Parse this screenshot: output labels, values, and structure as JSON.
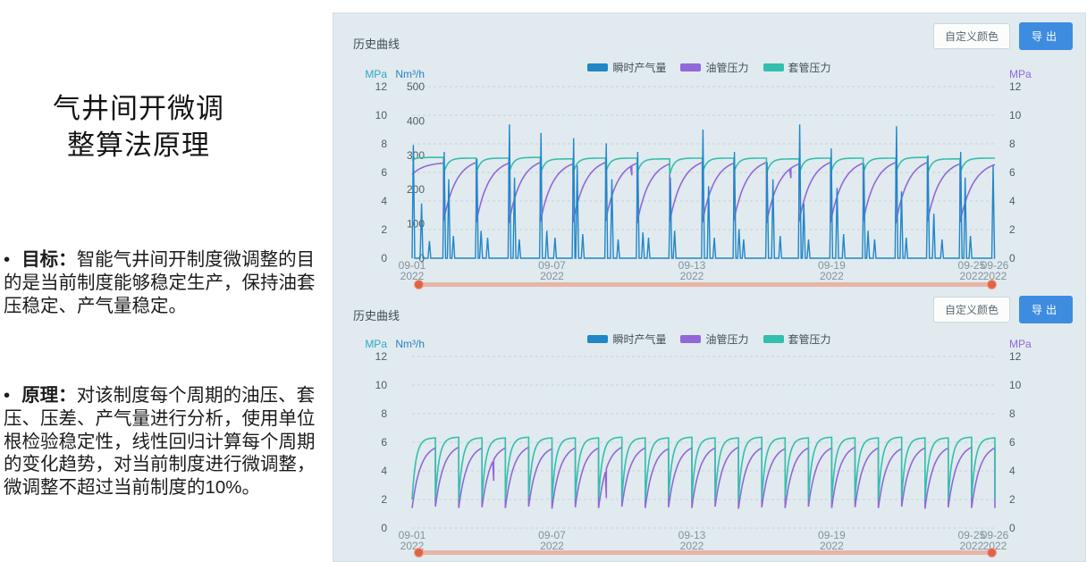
{
  "slide": {
    "bullet_glyph": "•",
    "title_line1": "气井间开微调",
    "title_line2": "整算法原理",
    "bullets": [
      {
        "label": "目标：",
        "text": "智能气井间开制度微调整的目的是当前制度能够稳定生产，保持油套压稳定、产气量稳定。"
      },
      {
        "label": "原理：",
        "text": "对该制度每个周期的油压、套压、压差、产气量进行分析，使用单位根检验稳定性，线性回归计算每个周期的变化趋势，对当前制度进行微调整，微调整不超过当前制度的10%。"
      }
    ]
  },
  "panel": {
    "charts": [
      {
        "header": "历史曲线",
        "custom_color_btn": "自定义颜色",
        "export_btn": "导出"
      },
      {
        "header": "历史曲线",
        "custom_color_btn": "自定义颜色",
        "export_btn": "导出"
      }
    ]
  },
  "chart_data": [
    {
      "type": "line",
      "title": "历史曲线",
      "has_flow": true,
      "final_drop": false,
      "casing_k": 8,
      "tubing_k": 2.6,
      "x_axis": {
        "max_day": 25,
        "ticks": [
          {
            "day": 0,
            "date": "09-01",
            "year": "2022"
          },
          {
            "day": 6,
            "date": "09-07",
            "year": "2022"
          },
          {
            "day": 12,
            "date": "09-13",
            "year": "2022"
          },
          {
            "day": 18,
            "date": "09-19",
            "year": "2022"
          },
          {
            "day": 24,
            "date": "09-25",
            "year": "2022"
          },
          {
            "day": 25,
            "date": "09-26",
            "year": "2022"
          }
        ]
      },
      "left_mpa": {
        "label": "MPa",
        "min": 0,
        "max": 12,
        "ticks": [
          0,
          2,
          4,
          6,
          8,
          10,
          12
        ],
        "color": "#2ea8c5"
      },
      "left_flow": {
        "label": "Nm³/h",
        "min": 0,
        "max": 500,
        "ticks": [
          0,
          100,
          200,
          300,
          400,
          500
        ],
        "color": "#2a7fc0"
      },
      "right_mpa": {
        "label": "MPa",
        "min": 0,
        "max": 12,
        "ticks": [
          0,
          2,
          4,
          6,
          8,
          10,
          12
        ],
        "color": "#9168d8"
      },
      "series": [
        {
          "name": "瞬时产气量",
          "color": "#2186c8",
          "axis": "flow"
        },
        {
          "name": "油管压力",
          "color": "#9168d8",
          "axis": "mpa"
        },
        {
          "name": "套管压力",
          "color": "#33bfad",
          "axis": "mpa"
        }
      ],
      "cycles": [
        {
          "s": 0,
          "d": 1.35,
          "casing": [
            6.85,
            7.05
          ],
          "tubing": [
            5.85,
            6.65
          ],
          "spikes": [
            [
              0.04,
              330
            ],
            [
              0.3,
              160
            ],
            [
              0.55,
              50
            ]
          ]
        },
        {
          "s": 1.35,
          "d": 1.4,
          "casing": [
            5.9,
            7.0
          ],
          "tubing": [
            2.6,
            6.7
          ],
          "spikes": [
            [
              0.02,
              310
            ],
            [
              0.16,
              230
            ],
            [
              0.3,
              65
            ]
          ]
        },
        {
          "s": 2.75,
          "d": 1.4,
          "casing": [
            5.95,
            7.0
          ],
          "tubing": [
            2.5,
            6.65
          ],
          "spikes": [
            [
              0.02,
              290
            ],
            [
              0.15,
              80
            ],
            [
              0.35,
              60
            ]
          ]
        },
        {
          "s": 4.15,
          "d": 1.35,
          "casing": [
            5.9,
            7.05
          ],
          "tubing": [
            2.45,
            6.7
          ],
          "spikes": [
            [
              0.02,
              390
            ],
            [
              0.18,
              235
            ],
            [
              0.33,
              55
            ]
          ]
        },
        {
          "s": 5.5,
          "d": 1.4,
          "casing": [
            5.85,
            6.95
          ],
          "tubing": [
            2.55,
            6.6
          ],
          "spikes": [
            [
              0.02,
              365
            ],
            [
              0.2,
              80
            ],
            [
              0.45,
              60
            ]
          ]
        },
        {
          "s": 6.9,
          "d": 1.4,
          "casing": [
            5.9,
            7.0
          ],
          "tubing": [
            2.5,
            6.7
          ],
          "spikes": [
            [
              0.02,
              350
            ],
            [
              0.13,
              270
            ],
            [
              0.3,
              70
            ]
          ]
        },
        {
          "s": 8.3,
          "d": 1.35,
          "casing": [
            5.95,
            7.0
          ],
          "tubing": [
            2.6,
            6.65
          ],
          "notch": [
            0.8,
            5.8
          ],
          "spikes": [
            [
              0.02,
              335
            ],
            [
              0.2,
              230
            ],
            [
              0.4,
              55
            ]
          ]
        },
        {
          "s": 9.65,
          "d": 1.4,
          "casing": [
            5.9,
            6.95
          ],
          "tubing": [
            2.45,
            6.6
          ],
          "spikes": [
            [
              0.02,
              310
            ],
            [
              0.18,
              75
            ],
            [
              0.35,
              60
            ]
          ]
        },
        {
          "s": 11.05,
          "d": 1.4,
          "casing": [
            5.85,
            7.0
          ],
          "tubing": [
            2.55,
            6.7
          ],
          "spikes": [
            [
              0.02,
              235
            ],
            [
              0.15,
              80
            ]
          ]
        },
        {
          "s": 12.45,
          "d": 1.35,
          "casing": [
            5.9,
            7.0
          ],
          "tubing": [
            2.5,
            6.65
          ],
          "spikes": [
            [
              0.02,
              375
            ],
            [
              0.2,
              210
            ],
            [
              0.38,
              60
            ]
          ]
        },
        {
          "s": 13.8,
          "d": 1.4,
          "casing": [
            5.95,
            7.0
          ],
          "tubing": [
            2.6,
            6.7
          ],
          "spikes": [
            [
              0.02,
              310
            ],
            [
              0.16,
              85
            ],
            [
              0.3,
              55
            ]
          ]
        },
        {
          "s": 15.2,
          "d": 1.4,
          "casing": [
            5.9,
            6.95
          ],
          "tubing": [
            2.45,
            6.6
          ],
          "notch": [
            0.75,
            5.6
          ],
          "spikes": [
            [
              0.02,
              280
            ],
            [
              0.2,
              230
            ],
            [
              0.42,
              65
            ]
          ]
        },
        {
          "s": 16.6,
          "d": 1.35,
          "casing": [
            5.85,
            7.0
          ],
          "tubing": [
            2.55,
            6.7
          ],
          "spikes": [
            [
              0.02,
              390
            ],
            [
              0.15,
              160
            ],
            [
              0.3,
              55
            ]
          ]
        },
        {
          "s": 17.95,
          "d": 1.4,
          "casing": [
            5.9,
            7.0
          ],
          "tubing": [
            2.5,
            6.65
          ],
          "spikes": [
            [
              0.02,
              320
            ],
            [
              0.2,
              205
            ],
            [
              0.4,
              70
            ]
          ]
        },
        {
          "s": 19.35,
          "d": 1.4,
          "casing": [
            5.95,
            7.0
          ],
          "tubing": [
            2.6,
            6.7
          ],
          "spikes": [
            [
              0.02,
              275
            ],
            [
              0.15,
              80
            ],
            [
              0.35,
              55
            ]
          ]
        },
        {
          "s": 20.75,
          "d": 1.35,
          "casing": [
            5.9,
            7.05
          ],
          "tubing": [
            2.45,
            6.7
          ],
          "spikes": [
            [
              0.02,
              385
            ],
            [
              0.18,
              195
            ],
            [
              0.33,
              60
            ]
          ]
        },
        {
          "s": 22.1,
          "d": 1.4,
          "casing": [
            5.85,
            6.95
          ],
          "tubing": [
            2.55,
            6.6
          ],
          "spikes": [
            [
              0.02,
              300
            ],
            [
              0.2,
              130
            ],
            [
              0.45,
              55
            ]
          ]
        },
        {
          "s": 23.5,
          "d": 1.5,
          "casing": [
            5.9,
            7.0
          ],
          "tubing": [
            2.5,
            6.55
          ],
          "spikes": [
            [
              0.02,
              310
            ],
            [
              0.15,
              235
            ],
            [
              0.3,
              65
            ],
            [
              0.95,
              270
            ]
          ]
        }
      ]
    },
    {
      "type": "line",
      "title": "历史曲线",
      "has_flow": false,
      "final_drop": true,
      "casing_k": 6,
      "tubing_k": 2.8,
      "x_axis": {
        "max_day": 25,
        "ticks": [
          {
            "day": 0,
            "date": "09-01",
            "year": "2022"
          },
          {
            "day": 6,
            "date": "09-07",
            "year": "2022"
          },
          {
            "day": 12,
            "date": "09-13",
            "year": "2022"
          },
          {
            "day": 18,
            "date": "09-19",
            "year": "2022"
          },
          {
            "day": 24,
            "date": "09-25",
            "year": "2022"
          },
          {
            "day": 25,
            "date": "09-26",
            "year": "2022"
          }
        ]
      },
      "left_mpa": {
        "label": "MPa",
        "min": 0,
        "max": 12,
        "ticks": [
          0,
          2,
          4,
          6,
          8,
          10,
          12
        ],
        "color": "#2ea8c5"
      },
      "left_flow": {
        "label": "Nm³/h",
        "min": 0,
        "max": 500,
        "ticks": [],
        "color": "#2a7fc0"
      },
      "right_mpa": {
        "label": "MPa",
        "min": 0,
        "max": 12,
        "ticks": [
          0,
          2,
          4,
          6,
          8,
          10,
          12
        ],
        "color": "#9168d8"
      },
      "series": [
        {
          "name": "瞬时产气量",
          "color": "#2186c8",
          "axis": "flow"
        },
        {
          "name": "油管压力",
          "color": "#9168d8",
          "axis": "mpa"
        },
        {
          "name": "套管压力",
          "color": "#33bfad",
          "axis": "mpa"
        }
      ],
      "cycles": [
        {
          "s": 0,
          "d": 1,
          "casing": [
            2.0,
            6.3
          ],
          "tubing": [
            1.4,
            5.6
          ]
        },
        {
          "s": 1,
          "d": 1,
          "casing": [
            2.1,
            6.35
          ],
          "tubing": [
            1.5,
            5.65
          ]
        },
        {
          "s": 2,
          "d": 1,
          "casing": [
            1.95,
            6.3
          ],
          "tubing": [
            1.4,
            5.6
          ]
        },
        {
          "s": 3,
          "d": 1,
          "casing": [
            2.05,
            6.3
          ],
          "tubing": [
            1.45,
            5.6
          ],
          "notch": [
            0.5,
            3.3
          ]
        },
        {
          "s": 4,
          "d": 1,
          "casing": [
            2.0,
            6.35
          ],
          "tubing": [
            1.4,
            5.65
          ]
        },
        {
          "s": 5,
          "d": 1,
          "casing": [
            2.1,
            6.3
          ],
          "tubing": [
            1.5,
            5.55
          ]
        },
        {
          "s": 6,
          "d": 1,
          "casing": [
            1.95,
            6.3
          ],
          "tubing": [
            1.35,
            5.6
          ]
        },
        {
          "s": 7,
          "d": 1,
          "casing": [
            2.0,
            6.3
          ],
          "tubing": [
            1.45,
            5.6
          ]
        },
        {
          "s": 8,
          "d": 1,
          "casing": [
            2.05,
            6.35
          ],
          "tubing": [
            1.4,
            5.65
          ],
          "notch": [
            0.3,
            2.1
          ]
        },
        {
          "s": 9,
          "d": 1,
          "casing": [
            2.0,
            6.3
          ],
          "tubing": [
            1.5,
            5.6
          ]
        },
        {
          "s": 10,
          "d": 1,
          "casing": [
            1.95,
            6.3
          ],
          "tubing": [
            1.4,
            5.55
          ]
        },
        {
          "s": 11,
          "d": 1,
          "casing": [
            2.1,
            6.35
          ],
          "tubing": [
            1.45,
            5.6
          ]
        },
        {
          "s": 12,
          "d": 1,
          "casing": [
            2.0,
            6.3
          ],
          "tubing": [
            1.4,
            5.6
          ]
        },
        {
          "s": 13,
          "d": 1,
          "casing": [
            2.05,
            6.3
          ],
          "tubing": [
            1.5,
            5.65
          ]
        },
        {
          "s": 14,
          "d": 1,
          "casing": [
            1.95,
            6.35
          ],
          "tubing": [
            1.35,
            5.6
          ]
        },
        {
          "s": 15,
          "d": 1,
          "casing": [
            2.0,
            6.3
          ],
          "tubing": [
            1.45,
            5.55
          ]
        },
        {
          "s": 16,
          "d": 1,
          "casing": [
            2.1,
            6.3
          ],
          "tubing": [
            1.4,
            5.6
          ]
        },
        {
          "s": 17,
          "d": 1,
          "casing": [
            2.0,
            6.35
          ],
          "tubing": [
            1.5,
            5.6
          ]
        },
        {
          "s": 18,
          "d": 1,
          "casing": [
            1.95,
            6.3
          ],
          "tubing": [
            1.4,
            5.65
          ]
        },
        {
          "s": 19,
          "d": 1,
          "casing": [
            2.05,
            6.3
          ],
          "tubing": [
            1.45,
            5.6
          ]
        },
        {
          "s": 20,
          "d": 1,
          "casing": [
            2.0,
            6.35
          ],
          "tubing": [
            1.4,
            5.55
          ]
        },
        {
          "s": 21,
          "d": 1,
          "casing": [
            2.1,
            6.3
          ],
          "tubing": [
            1.5,
            5.6
          ]
        },
        {
          "s": 22,
          "d": 1,
          "casing": [
            1.95,
            6.3
          ],
          "tubing": [
            1.35,
            5.6
          ]
        },
        {
          "s": 23,
          "d": 1,
          "casing": [
            2.0,
            6.35
          ],
          "tubing": [
            1.45,
            5.65
          ]
        },
        {
          "s": 24,
          "d": 1,
          "casing": [
            2.05,
            6.3
          ],
          "tubing": [
            1.4,
            5.6
          ]
        }
      ]
    }
  ]
}
